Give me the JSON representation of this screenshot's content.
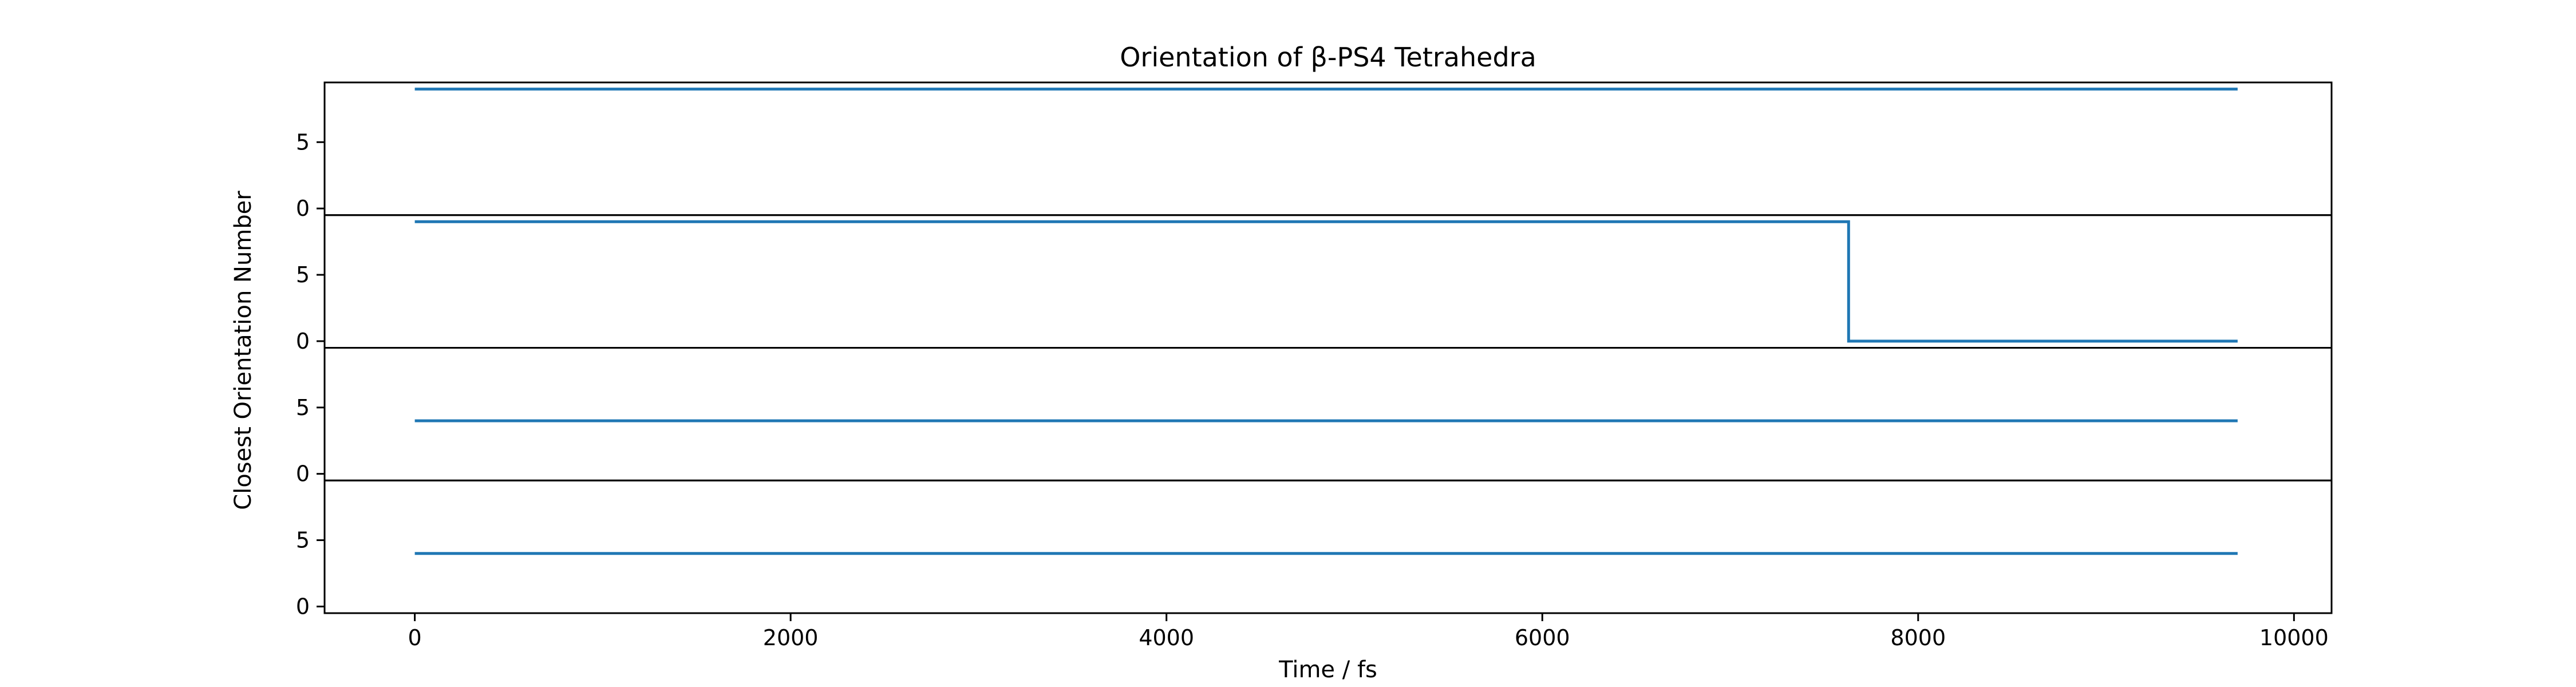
{
  "chart_data": {
    "type": "line",
    "title": "Orientation of β-PS4 Tetrahedra",
    "xlabel": "Time / fs",
    "ylabel": "Closest Orientation Number",
    "xlim": [
      -480,
      10200
    ],
    "x_ticks": [
      0,
      2000,
      4000,
      6000,
      8000,
      10000
    ],
    "x_tick_labels": [
      "0",
      "2000",
      "4000",
      "6000",
      "8000",
      "10000"
    ],
    "subplots": [
      {
        "ylim": [
          -0.5,
          9.5
        ],
        "y_ticks": [
          0,
          5
        ],
        "y_tick_labels": [
          "0",
          "5"
        ],
        "series": [
          {
            "x": [
              0,
              9700
            ],
            "y": [
              9,
              9
            ],
            "step": false
          }
        ]
      },
      {
        "ylim": [
          -0.5,
          9.5
        ],
        "y_ticks": [
          0,
          5
        ],
        "y_tick_labels": [
          "0",
          "5"
        ],
        "series": [
          {
            "x": [
              0,
              7630,
              7630,
              9700
            ],
            "y": [
              9,
              9,
              0,
              0
            ],
            "step": true
          }
        ]
      },
      {
        "ylim": [
          -0.5,
          9.5
        ],
        "y_ticks": [
          0,
          5
        ],
        "y_tick_labels": [
          "0",
          "5"
        ],
        "series": [
          {
            "x": [
              0,
              9700
            ],
            "y": [
              4,
              4
            ],
            "step": false
          }
        ]
      },
      {
        "ylim": [
          -0.5,
          9.5
        ],
        "y_ticks": [
          0,
          5
        ],
        "y_tick_labels": [
          "0",
          "5"
        ],
        "series": [
          {
            "x": [
              0,
              9700
            ],
            "y": [
              4,
              4
            ],
            "step": false
          }
        ]
      }
    ],
    "grid": false,
    "legend": "none",
    "colors": {
      "line": "#1f77b4",
      "axes": "#000000",
      "background": "#ffffff"
    }
  }
}
